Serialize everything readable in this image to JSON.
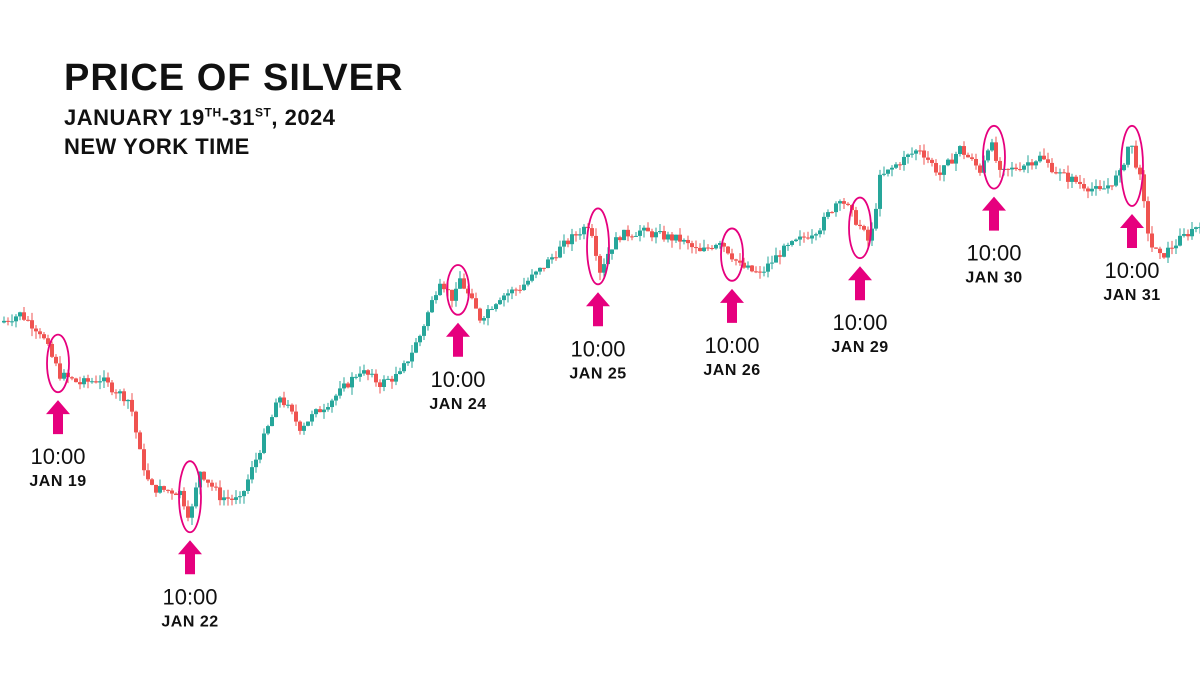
{
  "chart_data": {
    "type": "candlestick",
    "title": "PRICE OF SILVER",
    "subtitle": {
      "prefix": "JANUARY 19",
      "sup1": "TH",
      "middle": "-31",
      "sup2": "ST",
      "suffix": ", 2024"
    },
    "timezone": "NEW YORK TIME",
    "colors": {
      "up": "#26a69a",
      "down": "#ef5350",
      "highlight": "#e6007e"
    },
    "grid": false,
    "price_path": [
      {
        "t": 0,
        "p": 50
      },
      {
        "t": 1,
        "p": 52
      },
      {
        "t": 1.5,
        "p": 50
      },
      {
        "t": 2,
        "p": 48
      },
      {
        "t": 3,
        "p": 38
      },
      {
        "t": 4,
        "p": 36
      },
      {
        "t": 5,
        "p": 37
      },
      {
        "t": 6.5,
        "p": 32
      },
      {
        "t": 7,
        "p": 20
      },
      {
        "t": 7.5,
        "p": 12
      },
      {
        "t": 9,
        "p": 11
      },
      {
        "t": 9.5,
        "p": 5
      },
      {
        "t": 10,
        "p": 16
      },
      {
        "t": 11,
        "p": 10
      },
      {
        "t": 12,
        "p": 9
      },
      {
        "t": 12.5,
        "p": 15
      },
      {
        "t": 13,
        "p": 21
      },
      {
        "t": 14,
        "p": 33
      },
      {
        "t": 15,
        "p": 26
      },
      {
        "t": 16,
        "p": 30
      },
      {
        "t": 17,
        "p": 34
      },
      {
        "t": 18,
        "p": 39
      },
      {
        "t": 19,
        "p": 36
      },
      {
        "t": 20,
        "p": 38
      },
      {
        "t": 21,
        "p": 47
      },
      {
        "t": 22,
        "p": 60
      },
      {
        "t": 22.7,
        "p": 55
      },
      {
        "t": 23,
        "p": 60
      },
      {
        "t": 24,
        "p": 51
      },
      {
        "t": 25,
        "p": 56
      },
      {
        "t": 26,
        "p": 58
      },
      {
        "t": 27,
        "p": 62
      },
      {
        "t": 28,
        "p": 67
      },
      {
        "t": 29.5,
        "p": 73
      },
      {
        "t": 30,
        "p": 62
      },
      {
        "t": 30.5,
        "p": 67
      },
      {
        "t": 31,
        "p": 70
      },
      {
        "t": 32,
        "p": 71
      },
      {
        "t": 33,
        "p": 70
      },
      {
        "t": 34,
        "p": 69
      },
      {
        "t": 35,
        "p": 66
      },
      {
        "t": 36,
        "p": 69
      },
      {
        "t": 37,
        "p": 63
      },
      {
        "t": 38,
        "p": 61
      },
      {
        "t": 39,
        "p": 66
      },
      {
        "t": 40,
        "p": 69
      },
      {
        "t": 41,
        "p": 72
      },
      {
        "t": 42,
        "p": 79
      },
      {
        "t": 43,
        "p": 72
      },
      {
        "t": 43.5,
        "p": 68
      },
      {
        "t": 44,
        "p": 83
      },
      {
        "t": 45,
        "p": 87
      },
      {
        "t": 46,
        "p": 90
      },
      {
        "t": 47,
        "p": 84
      },
      {
        "t": 48,
        "p": 90
      },
      {
        "t": 49,
        "p": 85
      },
      {
        "t": 49.5,
        "p": 92
      },
      {
        "t": 50,
        "p": 84
      },
      {
        "t": 51,
        "p": 86
      },
      {
        "t": 52,
        "p": 88
      },
      {
        "t": 53,
        "p": 84
      },
      {
        "t": 54,
        "p": 82
      },
      {
        "t": 55,
        "p": 80
      },
      {
        "t": 56,
        "p": 84
      },
      {
        "t": 56.5,
        "p": 92
      },
      {
        "t": 57,
        "p": 83
      },
      {
        "t": 57.5,
        "p": 68
      },
      {
        "t": 58,
        "p": 65
      },
      {
        "t": 59,
        "p": 69
      },
      {
        "t": 60,
        "p": 73
      }
    ],
    "annotations": [
      {
        "time": "10:00",
        "date": "JAN 19",
        "t": 2.9
      },
      {
        "time": "10:00",
        "date": "JAN 22",
        "t": 9.5
      },
      {
        "time": "10:00",
        "date": "JAN 24",
        "t": 22.9
      },
      {
        "time": "10:00",
        "date": "JAN 25",
        "t": 29.9
      },
      {
        "time": "10:00",
        "date": "JAN 26",
        "t": 36.6
      },
      {
        "time": "10:00",
        "date": "JAN 29",
        "t": 43.0
      },
      {
        "time": "10:00",
        "date": "JAN 30",
        "t": 49.7
      },
      {
        "time": "10:00",
        "date": "JAN 31",
        "t": 56.6
      }
    ]
  }
}
